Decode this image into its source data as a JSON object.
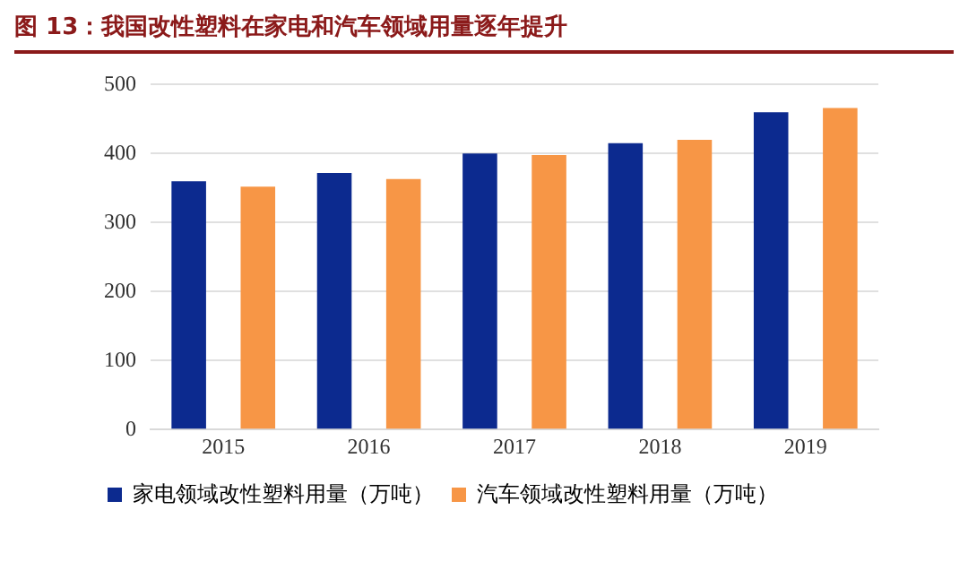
{
  "chart_data": {
    "type": "bar",
    "title": "图 13：我国改性塑料在家电和汽车领域用量逐年提升",
    "categories": [
      "2015",
      "2016",
      "2017",
      "2018",
      "2019"
    ],
    "series": [
      {
        "name": "家电领域改性塑料用量（万吨）",
        "color": "#0c2a8f",
        "values": [
          360,
          372,
          400,
          415,
          460
        ]
      },
      {
        "name": "汽车领域改性塑料用量（万吨）",
        "color": "#f79646",
        "values": [
          352,
          363,
          398,
          420,
          466
        ]
      }
    ],
    "ylim": [
      0,
      500
    ],
    "yticks": [
      0,
      100,
      200,
      300,
      400,
      500
    ],
    "grid": "y",
    "legend": "bottom"
  }
}
